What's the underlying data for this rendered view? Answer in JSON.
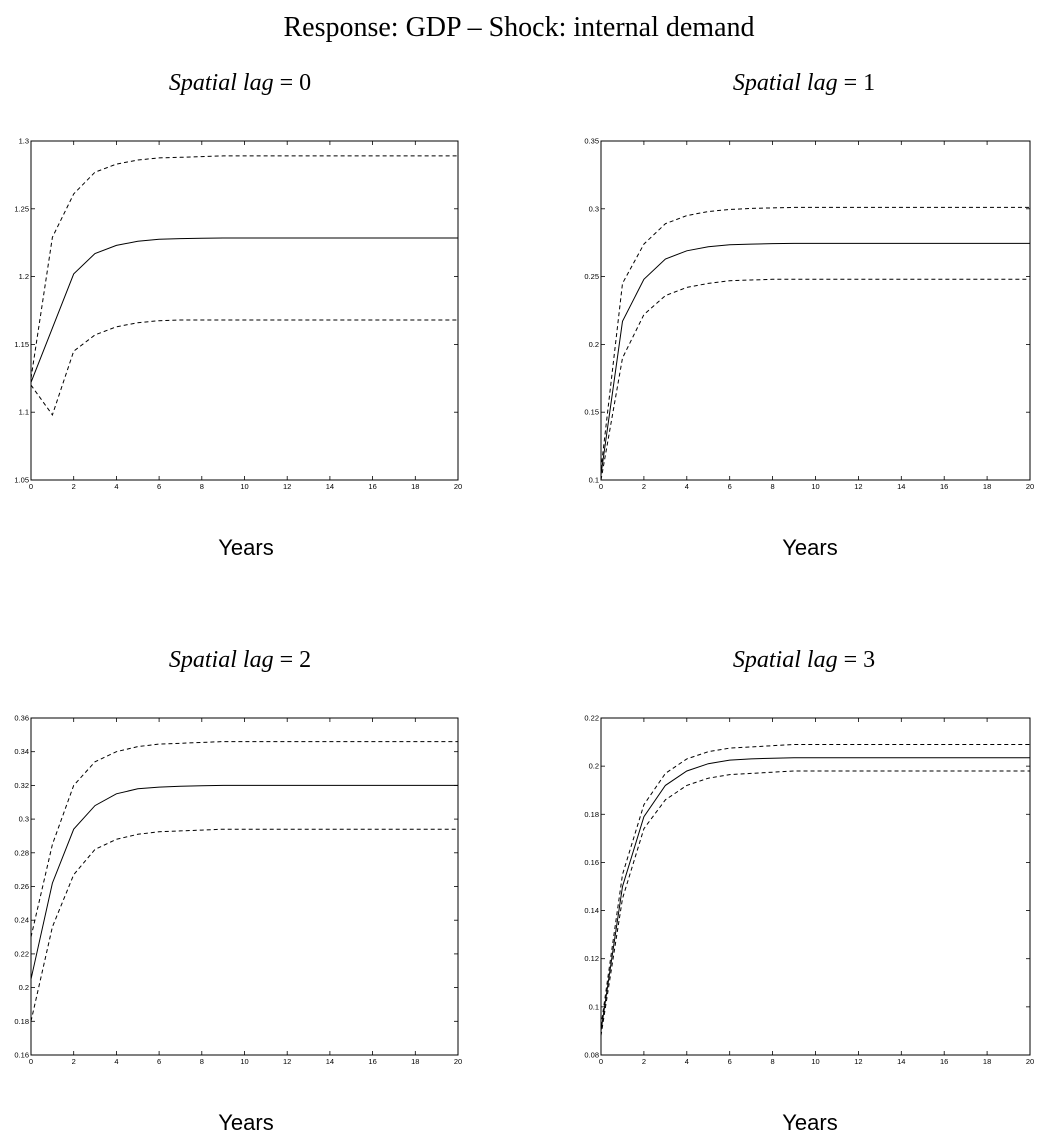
{
  "title": "Response: GDP – Shock: internal demand",
  "panels": [
    {
      "title_prefix": "Spatial lag",
      "title_suffix": " = 0",
      "xlabel": "Years"
    },
    {
      "title_prefix": "Spatial lag",
      "title_suffix": " = 1",
      "xlabel": "Years"
    },
    {
      "title_prefix": "Spatial lag",
      "title_suffix": " = 2",
      "xlabel": "Years"
    },
    {
      "title_prefix": "Spatial lag",
      "title_suffix": " = 3",
      "xlabel": "Years"
    }
  ],
  "chart_data": [
    {
      "type": "line",
      "title": "Spatial lag = 0",
      "xlabel": "Years",
      "ylabel": "",
      "xlim": [
        0,
        20
      ],
      "ylim": [
        1.05,
        1.3
      ],
      "xticks": [
        0,
        2,
        4,
        6,
        8,
        10,
        12,
        14,
        16,
        18,
        20
      ],
      "yticks": [
        1.05,
        1.1,
        1.15,
        1.2,
        1.25,
        1.3
      ],
      "ytick_labels": [
        "1.05",
        "1.1",
        "1.15",
        "1.2",
        "1.25",
        "1.3"
      ],
      "x": [
        0,
        1,
        2,
        3,
        4,
        5,
        6,
        7,
        8,
        9,
        10,
        11,
        12,
        13,
        14,
        15,
        16,
        17,
        18,
        19,
        20
      ],
      "series": [
        {
          "style": "solid",
          "values": [
            1.122,
            1.162,
            1.202,
            1.217,
            1.223,
            1.226,
            1.2275,
            1.228,
            1.2283,
            1.2285,
            1.2285,
            1.2285,
            1.2285,
            1.2285,
            1.2285,
            1.2285,
            1.2285,
            1.2285,
            1.2285,
            1.2285,
            1.2285
          ]
        },
        {
          "style": "dashed",
          "values": [
            1.125,
            1.229,
            1.261,
            1.277,
            1.283,
            1.286,
            1.2875,
            1.288,
            1.2885,
            1.289,
            1.289,
            1.289,
            1.289,
            1.289,
            1.289,
            1.289,
            1.289,
            1.289,
            1.289,
            1.289,
            1.289
          ]
        },
        {
          "style": "dashed",
          "values": [
            1.12,
            1.098,
            1.145,
            1.157,
            1.163,
            1.166,
            1.1675,
            1.168,
            1.168,
            1.168,
            1.168,
            1.168,
            1.168,
            1.168,
            1.168,
            1.168,
            1.168,
            1.168,
            1.168,
            1.168,
            1.168
          ]
        }
      ]
    },
    {
      "type": "line",
      "title": "Spatial lag = 1",
      "xlabel": "Years",
      "ylabel": "",
      "xlim": [
        0,
        20
      ],
      "ylim": [
        0.1,
        0.35
      ],
      "xticks": [
        0,
        2,
        4,
        6,
        8,
        10,
        12,
        14,
        16,
        18,
        20
      ],
      "yticks": [
        0.1,
        0.15,
        0.2,
        0.25,
        0.3,
        0.35
      ],
      "ytick_labels": [
        "0.1",
        "0.15",
        "0.2",
        "0.25",
        "0.3",
        "0.35"
      ],
      "x": [
        0,
        1,
        2,
        3,
        4,
        5,
        6,
        7,
        8,
        9,
        10,
        11,
        12,
        13,
        14,
        15,
        16,
        17,
        18,
        19,
        20
      ],
      "series": [
        {
          "style": "solid",
          "values": [
            0.104,
            0.217,
            0.248,
            0.263,
            0.269,
            0.272,
            0.2735,
            0.274,
            0.2743,
            0.2745,
            0.2745,
            0.2745,
            0.2745,
            0.2745,
            0.2745,
            0.2745,
            0.2745,
            0.2745,
            0.2745,
            0.2745,
            0.2745
          ]
        },
        {
          "style": "dashed",
          "values": [
            0.108,
            0.245,
            0.274,
            0.289,
            0.295,
            0.298,
            0.2995,
            0.3003,
            0.3007,
            0.301,
            0.301,
            0.301,
            0.301,
            0.301,
            0.301,
            0.301,
            0.301,
            0.301,
            0.301,
            0.301,
            0.301
          ]
        },
        {
          "style": "dashed",
          "values": [
            0.1,
            0.19,
            0.222,
            0.236,
            0.242,
            0.245,
            0.247,
            0.2475,
            0.248,
            0.248,
            0.248,
            0.248,
            0.248,
            0.248,
            0.248,
            0.248,
            0.248,
            0.248,
            0.248,
            0.248,
            0.248
          ]
        }
      ]
    },
    {
      "type": "line",
      "title": "Spatial lag = 2",
      "xlabel": "Years",
      "ylabel": "",
      "xlim": [
        0,
        20
      ],
      "ylim": [
        0.16,
        0.36
      ],
      "xticks": [
        0,
        2,
        4,
        6,
        8,
        10,
        12,
        14,
        16,
        18,
        20
      ],
      "yticks": [
        0.16,
        0.18,
        0.2,
        0.22,
        0.24,
        0.26,
        0.28,
        0.3,
        0.32,
        0.34,
        0.36
      ],
      "ytick_labels": [
        "0.16",
        "0.18",
        "0.2",
        "0.22",
        "0.24",
        "0.26",
        "0.28",
        "0.3",
        "0.32",
        "0.34",
        "0.36"
      ],
      "x": [
        0,
        1,
        2,
        3,
        4,
        5,
        6,
        7,
        8,
        9,
        10,
        11,
        12,
        13,
        14,
        15,
        16,
        17,
        18,
        19,
        20
      ],
      "series": [
        {
          "style": "solid",
          "values": [
            0.205,
            0.262,
            0.294,
            0.308,
            0.315,
            0.318,
            0.319,
            0.3195,
            0.3198,
            0.32,
            0.32,
            0.32,
            0.32,
            0.32,
            0.32,
            0.32,
            0.32,
            0.32,
            0.32,
            0.32,
            0.32
          ]
        },
        {
          "style": "dashed",
          "values": [
            0.23,
            0.285,
            0.32,
            0.334,
            0.34,
            0.343,
            0.3445,
            0.345,
            0.3455,
            0.346,
            0.346,
            0.346,
            0.346,
            0.346,
            0.346,
            0.346,
            0.346,
            0.346,
            0.346,
            0.346,
            0.346
          ]
        },
        {
          "style": "dashed",
          "values": [
            0.18,
            0.236,
            0.267,
            0.282,
            0.288,
            0.291,
            0.2925,
            0.293,
            0.2935,
            0.294,
            0.294,
            0.294,
            0.294,
            0.294,
            0.294,
            0.294,
            0.294,
            0.294,
            0.294,
            0.294,
            0.294
          ]
        }
      ]
    },
    {
      "type": "line",
      "title": "Spatial lag = 3",
      "xlabel": "Years",
      "ylabel": "",
      "xlim": [
        0,
        20
      ],
      "ylim": [
        0.08,
        0.22
      ],
      "xticks": [
        0,
        2,
        4,
        6,
        8,
        10,
        12,
        14,
        16,
        18,
        20
      ],
      "yticks": [
        0.08,
        0.1,
        0.12,
        0.14,
        0.16,
        0.18,
        0.2,
        0.22
      ],
      "ytick_labels": [
        "0.08",
        "0.1",
        "0.12",
        "0.14",
        "0.16",
        "0.18",
        "0.2",
        "0.22"
      ],
      "x": [
        0,
        1,
        2,
        3,
        4,
        5,
        6,
        7,
        8,
        9,
        10,
        11,
        12,
        13,
        14,
        15,
        16,
        17,
        18,
        19,
        20
      ],
      "series": [
        {
          "style": "solid",
          "values": [
            0.09,
            0.15,
            0.179,
            0.192,
            0.198,
            0.201,
            0.2025,
            0.203,
            0.2033,
            0.2035,
            0.2035,
            0.2035,
            0.2035,
            0.2035,
            0.2035,
            0.2035,
            0.2035,
            0.2035,
            0.2035,
            0.2035,
            0.2035
          ]
        },
        {
          "style": "dashed",
          "values": [
            0.092,
            0.155,
            0.184,
            0.197,
            0.203,
            0.206,
            0.2075,
            0.208,
            0.2085,
            0.209,
            0.209,
            0.209,
            0.209,
            0.209,
            0.209,
            0.209,
            0.209,
            0.209,
            0.209,
            0.209,
            0.209
          ]
        },
        {
          "style": "dashed",
          "values": [
            0.088,
            0.145,
            0.174,
            0.186,
            0.192,
            0.195,
            0.1965,
            0.197,
            0.1975,
            0.198,
            0.198,
            0.198,
            0.198,
            0.198,
            0.198,
            0.198,
            0.198,
            0.198,
            0.198,
            0.198,
            0.198
          ]
        }
      ]
    }
  ]
}
